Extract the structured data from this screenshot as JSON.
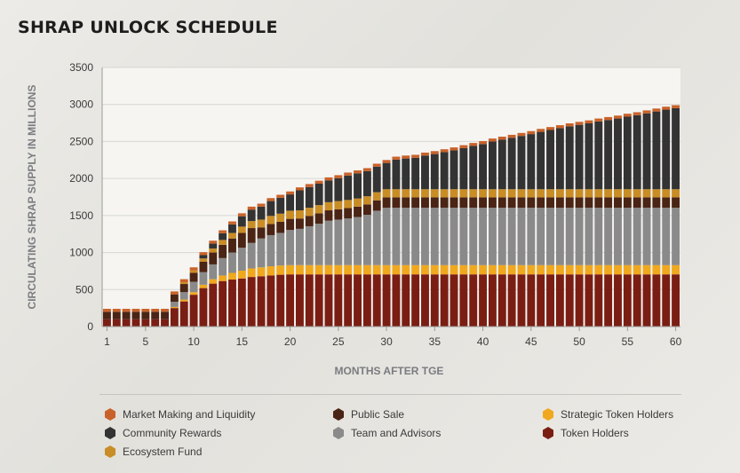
{
  "title": "SHRAP UNLOCK SCHEDULE",
  "chart_data": {
    "type": "bar",
    "stacked": true,
    "xlabel": "MONTHS AFTER TGE",
    "ylabel": "CIRCULATING SHRAP SUPPLY IN MILLIONS",
    "ylim": [
      0,
      3500
    ],
    "yticks": [
      0,
      500,
      1000,
      1500,
      2000,
      2500,
      3000,
      3500
    ],
    "xticks": [
      1,
      5,
      10,
      15,
      20,
      25,
      30,
      35,
      40,
      45,
      50,
      55,
      60
    ],
    "grid": true,
    "legend_position": "bottom",
    "categories": [
      1,
      2,
      3,
      4,
      5,
      6,
      7,
      8,
      9,
      10,
      11,
      12,
      13,
      14,
      15,
      16,
      17,
      18,
      19,
      20,
      21,
      22,
      23,
      24,
      25,
      26,
      27,
      28,
      29,
      30,
      31,
      32,
      33,
      34,
      35,
      36,
      37,
      38,
      39,
      40,
      41,
      42,
      43,
      44,
      45,
      46,
      47,
      48,
      49,
      50,
      51,
      52,
      53,
      54,
      55,
      56,
      57,
      58,
      59,
      60
    ],
    "series": [
      {
        "name": "Token Holders",
        "color": "#7a1e14",
        "values": [
          100,
          100,
          100,
          100,
          100,
          100,
          100,
          250,
          340,
          430,
          520,
          580,
          615,
          635,
          650,
          670,
          680,
          690,
          700,
          705,
          705,
          705,
          705,
          705,
          705,
          705,
          705,
          705,
          705,
          705,
          705,
          705,
          705,
          705,
          705,
          705,
          705,
          705,
          705,
          705,
          705,
          705,
          705,
          705,
          705,
          705,
          705,
          705,
          705,
          705,
          705,
          705,
          705,
          705,
          705,
          705,
          705,
          705,
          705,
          705
        ]
      },
      {
        "name": "Strategic Token Holders",
        "color": "#f0a81e",
        "values": [
          0,
          0,
          0,
          0,
          0,
          0,
          0,
          15,
          25,
          35,
          45,
          60,
          75,
          90,
          105,
          115,
          120,
          125,
          125,
          125,
          125,
          125,
          125,
          125,
          125,
          125,
          125,
          125,
          125,
          125,
          125,
          125,
          125,
          125,
          125,
          125,
          125,
          125,
          125,
          125,
          125,
          125,
          125,
          125,
          125,
          125,
          125,
          125,
          125,
          125,
          125,
          125,
          125,
          125,
          125,
          125,
          125,
          125,
          125,
          125
        ]
      },
      {
        "name": "Team and Advisors",
        "color": "#8a8a8a",
        "values": [
          0,
          0,
          0,
          0,
          0,
          0,
          0,
          70,
          100,
          140,
          170,
          200,
          235,
          275,
          310,
          345,
          390,
          420,
          440,
          475,
          490,
          525,
          560,
          600,
          615,
          630,
          650,
          680,
          735,
          775,
          775,
          775,
          775,
          775,
          775,
          775,
          775,
          775,
          775,
          775,
          775,
          775,
          775,
          775,
          775,
          775,
          775,
          775,
          775,
          775,
          775,
          775,
          775,
          775,
          775,
          775,
          775,
          775,
          775,
          775
        ]
      },
      {
        "name": "Public Sale",
        "color": "#4a2414",
        "values": [
          100,
          100,
          100,
          100,
          100,
          100,
          100,
          100,
          110,
          120,
          140,
          160,
          180,
          190,
          200,
          200,
          150,
          150,
          150,
          150,
          140,
          140,
          140,
          140,
          140,
          140,
          140,
          140,
          140,
          140,
          140,
          140,
          140,
          140,
          140,
          140,
          140,
          140,
          140,
          140,
          140,
          140,
          140,
          140,
          140,
          140,
          140,
          140,
          140,
          140,
          140,
          140,
          140,
          140,
          140,
          140,
          140,
          140,
          140,
          140
        ]
      },
      {
        "name": "Ecosystem Fund",
        "color": "#c98d26",
        "values": [
          0,
          0,
          0,
          0,
          0,
          0,
          0,
          0,
          25,
          35,
          45,
          55,
          65,
          75,
          85,
          95,
          105,
          110,
          110,
          110,
          110,
          110,
          110,
          110,
          110,
          110,
          110,
          110,
          110,
          110,
          110,
          110,
          110,
          110,
          110,
          110,
          110,
          110,
          110,
          110,
          110,
          110,
          110,
          110,
          110,
          110,
          110,
          110,
          110,
          110,
          110,
          110,
          110,
          110,
          110,
          110,
          110,
          110,
          110,
          110
        ]
      },
      {
        "name": "Community Rewards",
        "color": "#333333",
        "values": [
          0,
          0,
          0,
          0,
          0,
          0,
          0,
          0,
          0,
          0,
          45,
          65,
          90,
          115,
          140,
          155,
          175,
          200,
          215,
          220,
          270,
          280,
          290,
          295,
          310,
          330,
          340,
          340,
          345,
          355,
          400,
          415,
          425,
          455,
          475,
          500,
          525,
          555,
          585,
          610,
          645,
          670,
          695,
          720,
          745,
          775,
          800,
          825,
          850,
          870,
          890,
          915,
          935,
          955,
          980,
          1000,
          1025,
          1050,
          1075,
          1095
        ]
      },
      {
        "name": "Market Making and Liquidity",
        "color": "#c9622a",
        "values": [
          40,
          40,
          40,
          40,
          40,
          40,
          40,
          40,
          40,
          40,
          40,
          40,
          40,
          40,
          40,
          40,
          40,
          40,
          40,
          40,
          40,
          40,
          40,
          40,
          40,
          40,
          40,
          40,
          40,
          40,
          40,
          40,
          40,
          40,
          40,
          40,
          40,
          40,
          40,
          40,
          40,
          40,
          40,
          40,
          40,
          40,
          40,
          40,
          40,
          40,
          40,
          40,
          40,
          40,
          40,
          40,
          40,
          40,
          40,
          40
        ]
      }
    ]
  },
  "legend": {
    "items": [
      {
        "label": "Market Making and Liquidity",
        "color": "#c9622a"
      },
      {
        "label": "Public Sale",
        "color": "#4a2414"
      },
      {
        "label": "Strategic Token Holders",
        "color": "#f0a81e"
      },
      {
        "label": "Community Rewards",
        "color": "#333333"
      },
      {
        "label": "Team and Advisors",
        "color": "#8a8a8a"
      },
      {
        "label": "Token Holders",
        "color": "#7a1e14"
      },
      {
        "label": "Ecosystem Fund",
        "color": "#c98d26"
      }
    ]
  }
}
